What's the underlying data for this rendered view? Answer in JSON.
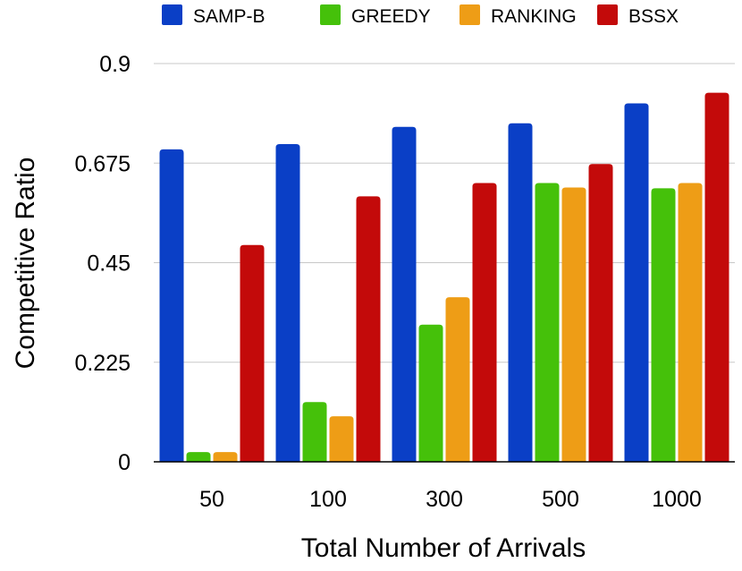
{
  "chart_data": {
    "type": "bar",
    "title": "",
    "xlabel": "Total Number of Arrivals",
    "ylabel": "Competitive Ratio",
    "categories": [
      "50",
      "100",
      "300",
      "500",
      "1000"
    ],
    "ylim": [
      0,
      0.9
    ],
    "yticks": [
      0,
      0.225,
      0.45,
      0.675,
      0.9
    ],
    "ytick_labels": [
      "0",
      "0.225",
      "0.45",
      "0.675",
      "0.9"
    ],
    "grid": true,
    "legend_position": "top",
    "series": [
      {
        "name": "SAMP-B",
        "color": "#0a3fc6",
        "values": [
          0.706,
          0.718,
          0.757,
          0.765,
          0.81
        ]
      },
      {
        "name": "GREEDY",
        "color": "#45c10a",
        "values": [
          0.022,
          0.135,
          0.31,
          0.63,
          0.618
        ]
      },
      {
        "name": "RANKING",
        "color": "#ee9d16",
        "values": [
          0.022,
          0.103,
          0.372,
          0.62,
          0.63
        ]
      },
      {
        "name": "BSSX",
        "color": "#c30a0a",
        "values": [
          0.49,
          0.6,
          0.63,
          0.673,
          0.834
        ]
      }
    ]
  }
}
